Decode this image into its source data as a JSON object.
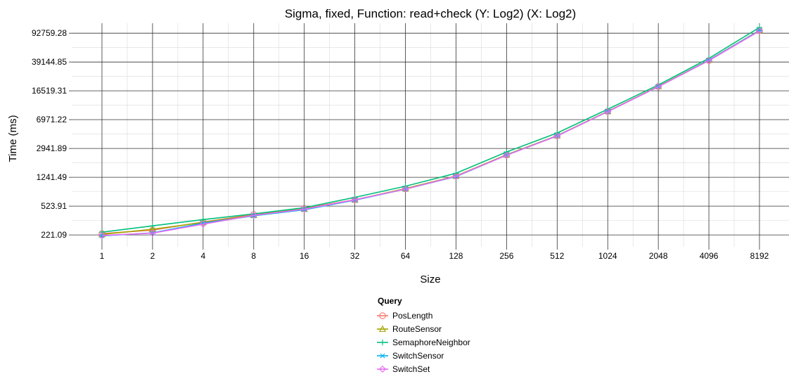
{
  "chart_data": {
    "type": "line",
    "title": "Sigma, fixed, Function: read+check (Y: Log2) (X: Log2)",
    "xlabel": "Size",
    "ylabel": "Time (ms)",
    "x_scale": "log2",
    "y_scale": "log2",
    "x": [
      1,
      2,
      4,
      8,
      16,
      32,
      64,
      128,
      256,
      512,
      1024,
      2048,
      4096,
      8192
    ],
    "x_tick_labels": [
      "1",
      "2",
      "4",
      "8",
      "16",
      "32",
      "64",
      "128",
      "256",
      "512",
      "1024",
      "2048",
      "4096",
      "8192"
    ],
    "y_ticks": [
      221.09,
      523.91,
      1241.49,
      2941.89,
      6971.22,
      16519.31,
      39144.85,
      92759.28
    ],
    "y_tick_labels": [
      "221.09",
      "523.91",
      "1241.49",
      "2941.89",
      "6971.22",
      "16519.31",
      "39144.85",
      "92759.28"
    ],
    "ylim": [
      155,
      125000
    ],
    "grid": true,
    "legend_title": "Query",
    "legend_position": "bottom",
    "series": [
      {
        "name": "PosLength",
        "color": "#F8766D",
        "marker": "circle",
        "values": [
          230,
          255,
          325,
          408,
          490,
          635,
          880,
          1290,
          2420,
          4300,
          8900,
          18800,
          41000,
          100000
        ]
      },
      {
        "name": "RouteSensor",
        "color": "#A3A500",
        "marker": "triangle",
        "values": [
          225,
          262,
          322,
          400,
          480,
          630,
          885,
          1290,
          2440,
          4320,
          8930,
          18900,
          41500,
          101000
        ]
      },
      {
        "name": "SemaphoreNeighbor",
        "color": "#00BF7D",
        "marker": "plus",
        "values": [
          240,
          290,
          350,
          415,
          500,
          680,
          950,
          1400,
          2650,
          4680,
          9500,
          19700,
          43600,
          110000
        ]
      },
      {
        "name": "SwitchSensor",
        "color": "#00B0F6",
        "marker": "star",
        "values": [
          215,
          235,
          315,
          392,
          470,
          625,
          870,
          1270,
          2410,
          4280,
          8880,
          18700,
          41200,
          100500
        ]
      },
      {
        "name": "SwitchSet",
        "color": "#E76BF3",
        "marker": "diamond",
        "values": [
          218,
          233,
          305,
          398,
          478,
          632,
          870,
          1280,
          2400,
          4270,
          8860,
          18700,
          40800,
          99000
        ]
      }
    ]
  }
}
